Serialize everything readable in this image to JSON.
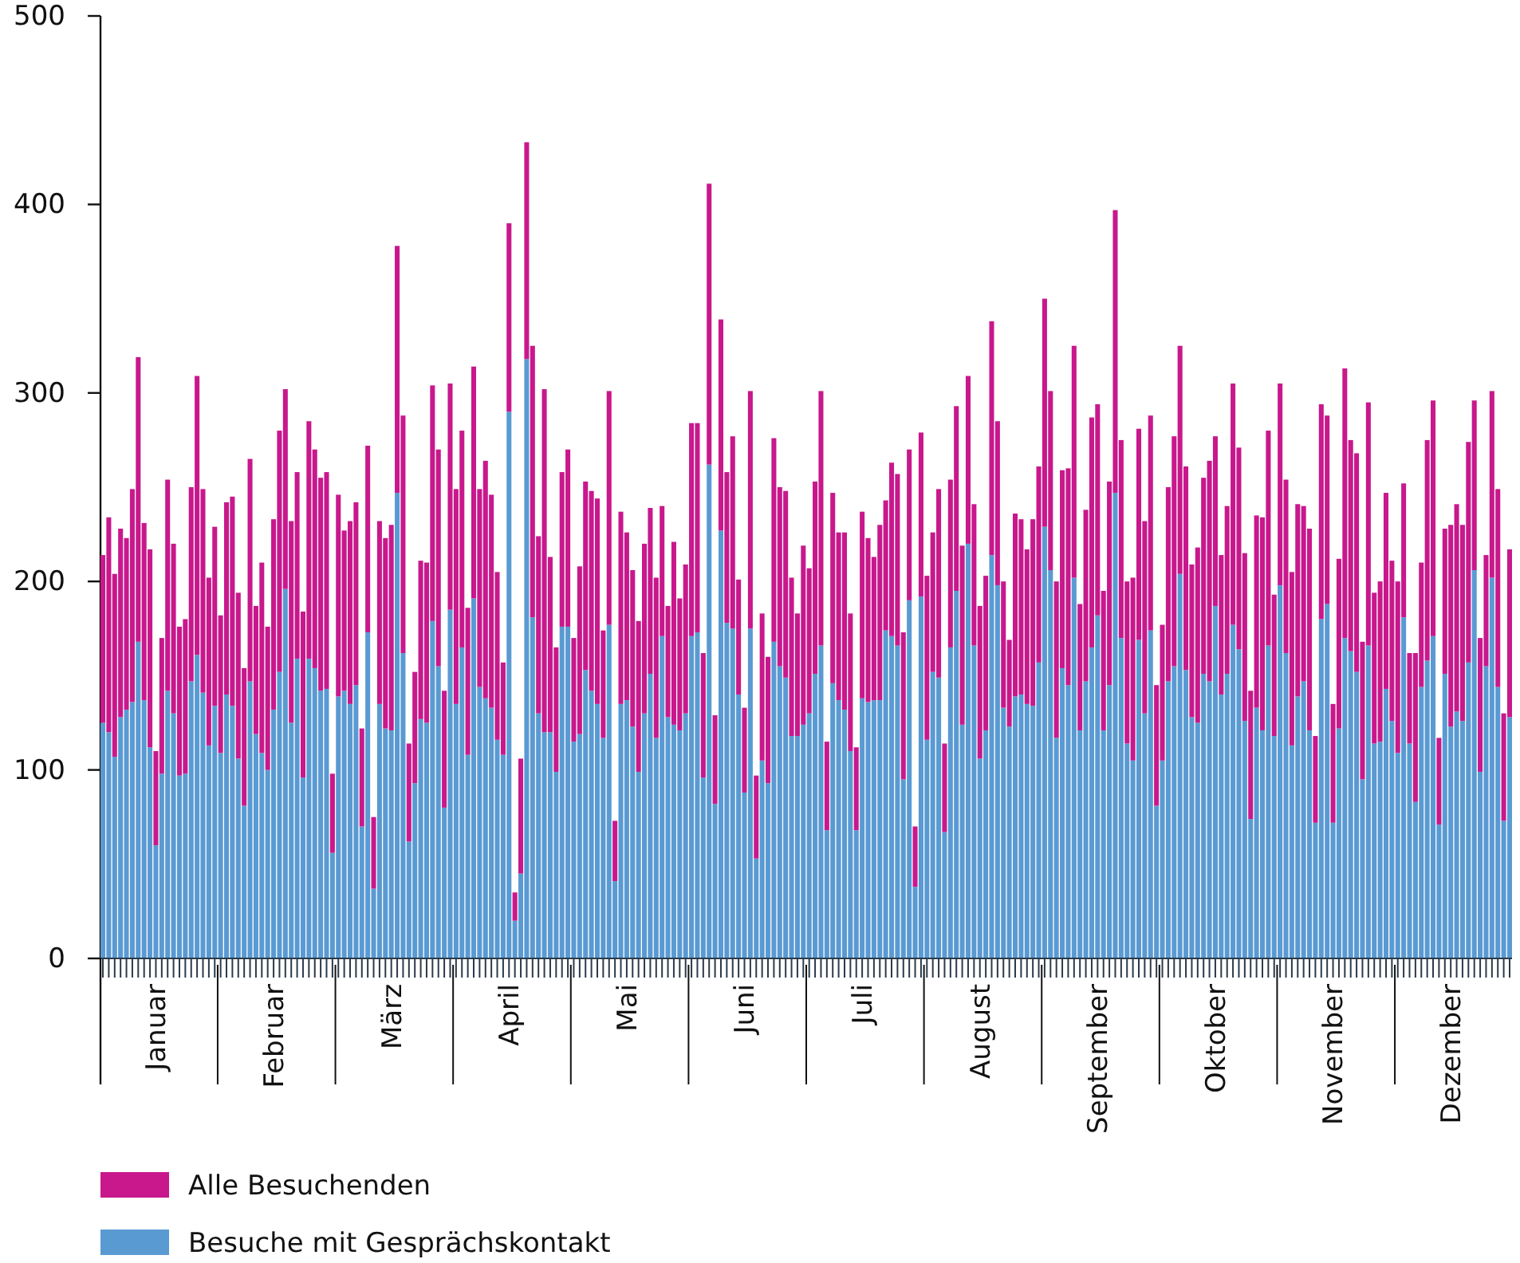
{
  "chart_data": {
    "type": "bar",
    "stacked": true,
    "legend": "bottom left",
    "ylim": [
      0,
      500
    ],
    "yticks": [
      0,
      100,
      200,
      300,
      400,
      500
    ],
    "categories": [
      null,
      null,
      null,
      null,
      null,
      null,
      null,
      null,
      null,
      "Januar",
      null,
      null,
      null,
      null,
      null,
      null,
      null,
      null,
      null,
      null,
      null,
      null,
      null,
      null,
      null,
      null,
      null,
      null,
      null,
      "Februar",
      null,
      null,
      null,
      null,
      null,
      null,
      null,
      null,
      null,
      null,
      null,
      null,
      null,
      null,
      null,
      null,
      null,
      null,
      null,
      "März",
      null,
      null,
      null,
      null,
      null,
      null,
      null,
      null,
      null,
      null,
      null,
      null,
      null,
      null,
      null,
      null,
      null,
      null,
      null,
      "April",
      null,
      null,
      null,
      null,
      null,
      null,
      null,
      null,
      null,
      null,
      null,
      null,
      null,
      null,
      null,
      null,
      null,
      null,
      null,
      "Mai",
      null,
      null,
      null,
      null,
      null,
      null,
      null,
      null,
      null,
      null,
      null,
      null,
      null,
      null,
      null,
      null,
      null,
      null,
      null,
      "Juni",
      null,
      null,
      null,
      null,
      null,
      null,
      null,
      null,
      null,
      null,
      null,
      null,
      null,
      null,
      null,
      null,
      null,
      null,
      null,
      "Juli",
      null,
      null,
      null,
      null,
      null,
      null,
      null,
      null,
      null,
      null,
      null,
      null,
      null,
      null,
      null,
      null,
      null,
      null,
      null,
      "August",
      null,
      null,
      null,
      null,
      null,
      null,
      null,
      null,
      null,
      null,
      null,
      null,
      null,
      null,
      null,
      null,
      null,
      null,
      null,
      "September",
      null,
      null,
      null,
      null,
      null,
      null,
      null,
      null,
      null,
      null,
      null,
      null,
      null,
      null,
      null,
      null,
      null,
      null,
      null,
      "Oktober",
      null,
      null,
      null,
      null,
      null,
      null,
      null,
      null,
      null,
      null,
      null,
      null,
      null,
      null,
      null,
      null,
      null,
      null,
      null,
      "November",
      null,
      null,
      null,
      null,
      null,
      null,
      null,
      null,
      null,
      null,
      null,
      null,
      null,
      null,
      null,
      null,
      null,
      null,
      null,
      "Dezember",
      null,
      null,
      null,
      null,
      null,
      null,
      null,
      null,
      null,
      null
    ],
    "series": [
      {
        "name": "Besuche mit Gesprächskontakt",
        "color": "#5a9ad3",
        "values": [
          125,
          120,
          107,
          128,
          132,
          136,
          168,
          137,
          112,
          60,
          98,
          142,
          130,
          97,
          98,
          147,
          161,
          141,
          113,
          134,
          109,
          140,
          134,
          106,
          81,
          147,
          119,
          109,
          100,
          132,
          152,
          196,
          125,
          159,
          96,
          159,
          154,
          142,
          143,
          56,
          139,
          142,
          135,
          145,
          70,
          173,
          37,
          135,
          122,
          121,
          247,
          162,
          62,
          93,
          127,
          125,
          179,
          155,
          80,
          185,
          135,
          165,
          108,
          191,
          144,
          138,
          133,
          116,
          108,
          290,
          20,
          45,
          318,
          181,
          130,
          120,
          120,
          99,
          176,
          176,
          115,
          119,
          153,
          142,
          135,
          117,
          177,
          41,
          135,
          137,
          123,
          99,
          130,
          151,
          117,
          171,
          128,
          124,
          121,
          130,
          171,
          173,
          96,
          262,
          82,
          227,
          178,
          175,
          140,
          88,
          175,
          53,
          105,
          93,
          168,
          155,
          149,
          118,
          118,
          124,
          130,
          151,
          166,
          68,
          146,
          137,
          132,
          110,
          68,
          138,
          136,
          137,
          137,
          174,
          171,
          166,
          95,
          190,
          38,
          192,
          116,
          152,
          149,
          67,
          165,
          195,
          124,
          220,
          166,
          106,
          121,
          214,
          198,
          133,
          123,
          139,
          140,
          135,
          134,
          157,
          229,
          206,
          117,
          154,
          145,
          202,
          121,
          147,
          165,
          182,
          121,
          145,
          247,
          170,
          114,
          105,
          169,
          130,
          174,
          81,
          105,
          147,
          155,
          204,
          153,
          128,
          125,
          151,
          147,
          187,
          140,
          151,
          177,
          164,
          126,
          74,
          133,
          121,
          166,
          118,
          198,
          162,
          113,
          139,
          147,
          121,
          72,
          180,
          188,
          72,
          122,
          170,
          163,
          152,
          95,
          166,
          114,
          115,
          143,
          126,
          109,
          181,
          114,
          83,
          144,
          158,
          171,
          71,
          151,
          123,
          131,
          126,
          157,
          206,
          99,
          155,
          202,
          144,
          73,
          128
        ]
      },
      {
        "name": "Alle Besuchenden",
        "color": "#c8188c",
        "values": [
          89,
          114,
          97,
          100,
          91,
          113,
          151,
          94,
          105,
          50,
          72,
          112,
          90,
          79,
          82,
          103,
          148,
          108,
          89,
          95,
          73,
          102,
          111,
          88,
          73,
          118,
          68,
          101,
          76,
          101,
          128,
          106,
          107,
          99,
          88,
          126,
          116,
          113,
          115,
          42,
          107,
          85,
          97,
          97,
          52,
          99,
          38,
          97,
          101,
          109,
          131,
          126,
          52,
          59,
          84,
          85,
          125,
          115,
          62,
          120,
          114,
          115,
          78,
          123,
          105,
          126,
          113,
          89,
          49,
          100,
          15,
          61,
          115,
          144,
          94,
          182,
          93,
          66,
          82,
          94,
          55,
          89,
          100,
          106,
          109,
          57,
          124,
          32,
          102,
          89,
          83,
          80,
          90,
          88,
          85,
          69,
          59,
          97,
          70,
          79,
          113,
          111,
          66,
          149,
          47,
          112,
          80,
          102,
          61,
          45,
          126,
          44,
          78,
          67,
          108,
          95,
          99,
          84,
          65,
          95,
          77,
          102,
          135,
          47,
          101,
          89,
          94,
          73,
          44,
          99,
          87,
          76,
          93,
          69,
          92,
          91,
          78,
          80,
          32,
          87,
          87,
          74,
          100,
          47,
          89,
          98,
          95,
          89,
          75,
          81,
          82,
          124,
          87,
          67,
          46,
          97,
          93,
          82,
          99,
          104,
          121,
          95,
          83,
          105,
          115,
          123,
          67,
          91,
          122,
          112,
          74,
          108,
          150,
          105,
          86,
          97,
          112,
          102,
          114,
          64,
          72,
          103,
          122,
          121,
          108,
          81,
          93,
          104,
          117,
          90,
          74,
          89,
          128,
          107,
          89,
          68,
          102,
          113,
          114,
          75,
          107,
          92,
          92,
          102,
          93,
          107,
          46,
          114,
          100,
          63,
          90,
          143,
          112,
          116,
          73,
          129,
          80,
          85,
          104,
          85,
          91,
          71,
          48,
          79,
          66,
          117,
          125,
          46,
          77,
          107,
          110,
          104,
          117,
          90,
          71,
          59,
          99,
          105,
          57,
          89
        ]
      }
    ]
  }
}
